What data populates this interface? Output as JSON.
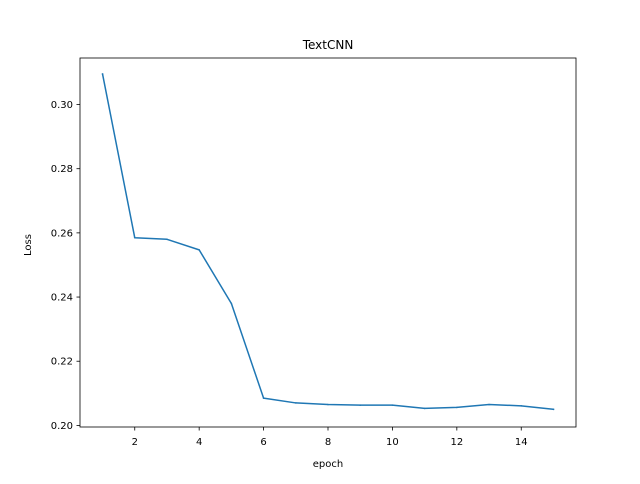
{
  "chart_data": {
    "type": "line",
    "title": "TextCNN",
    "xlabel": "epoch",
    "ylabel": "Loss",
    "xlim": [
      0.3,
      15.7
    ],
    "ylim": [
      0.1995,
      0.3145
    ],
    "xticks": [
      2,
      4,
      6,
      8,
      10,
      12,
      14
    ],
    "xtick_labels": [
      "2",
      "4",
      "6",
      "8",
      "10",
      "12",
      "14"
    ],
    "yticks": [
      0.2,
      0.22,
      0.24,
      0.26,
      0.28,
      0.3
    ],
    "ytick_labels": [
      "0.20",
      "0.22",
      "0.24",
      "0.26",
      "0.28",
      "0.30"
    ],
    "grid": false,
    "series": [
      {
        "color": "#1f77b4",
        "x": [
          1,
          2,
          3,
          4,
          5,
          6,
          7,
          8,
          9,
          10,
          11,
          12,
          13,
          14,
          15
        ],
        "values": [
          0.3095,
          0.2585,
          0.258,
          0.2547,
          0.238,
          0.2085,
          0.207,
          0.2065,
          0.2063,
          0.2063,
          0.2053,
          0.2056,
          0.2065,
          0.2061,
          0.205
        ]
      }
    ]
  }
}
